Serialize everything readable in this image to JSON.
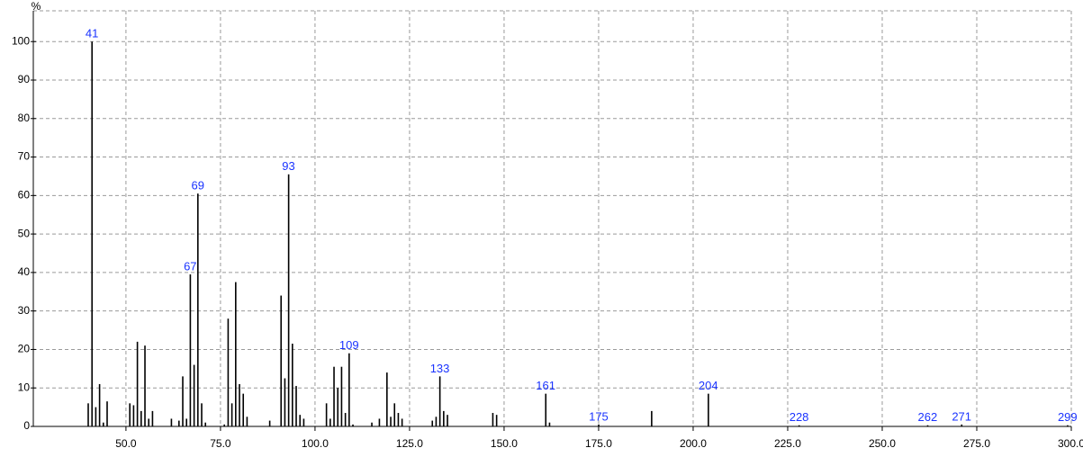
{
  "chart_data": {
    "type": "bar",
    "y_label": "%",
    "x": [
      40,
      41,
      42,
      43,
      44,
      45,
      51,
      52,
      53,
      54,
      55,
      56,
      57,
      62,
      64,
      65,
      66,
      67,
      68,
      69,
      70,
      71,
      76,
      77,
      78,
      79,
      80,
      81,
      82,
      88,
      91,
      92,
      93,
      94,
      95,
      96,
      97,
      103,
      104,
      105,
      106,
      107,
      108,
      109,
      110,
      115,
      117,
      119,
      120,
      121,
      122,
      123,
      131,
      132,
      133,
      134,
      135,
      147,
      148,
      161,
      162,
      175,
      189,
      204,
      228,
      262,
      271,
      299
    ],
    "values": [
      6,
      100,
      5,
      11,
      1,
      6.5,
      6,
      5.5,
      22,
      4,
      21,
      2,
      4,
      2,
      1.5,
      13,
      2,
      39.5,
      16,
      60.5,
      6,
      1,
      0.5,
      28,
      6,
      37.5,
      11,
      8.5,
      2.5,
      1.5,
      34,
      12.5,
      65.5,
      21.5,
      10.5,
      3,
      2,
      6,
      2,
      15.5,
      10,
      15.5,
      3.5,
      19,
      0.5,
      1,
      2,
      14,
      2.5,
      6,
      3.5,
      2,
      1.5,
      2.5,
      13,
      4,
      3,
      3.5,
      3,
      8.5,
      1,
      0.5,
      4,
      8.5,
      0.3,
      0.3,
      0.5,
      0.3
    ],
    "labeled_peaks": [
      41,
      67,
      69,
      93,
      109,
      133,
      161,
      175,
      204,
      228,
      262,
      271,
      299
    ],
    "color": "#000000",
    "label_color": "#1a33ff",
    "xlim": [
      25.5,
      300
    ],
    "ylim": [
      0,
      108
    ],
    "xticks": [
      {
        "value": 50,
        "label": "50.0"
      },
      {
        "value": 75,
        "label": "75.0"
      },
      {
        "value": 100,
        "label": "100.0"
      },
      {
        "value": 125,
        "label": "125.0"
      },
      {
        "value": 150,
        "label": "150.0"
      },
      {
        "value": 175,
        "label": "175.0"
      },
      {
        "value": 200,
        "label": "200.0"
      },
      {
        "value": 225,
        "label": "225.0"
      },
      {
        "value": 250,
        "label": "250.0"
      },
      {
        "value": 275,
        "label": "275.0"
      },
      {
        "value": 300,
        "label": "300.0"
      }
    ],
    "yticks": [
      0,
      10,
      20,
      30,
      40,
      50,
      60,
      70,
      80,
      90,
      100
    ],
    "grid": true
  }
}
